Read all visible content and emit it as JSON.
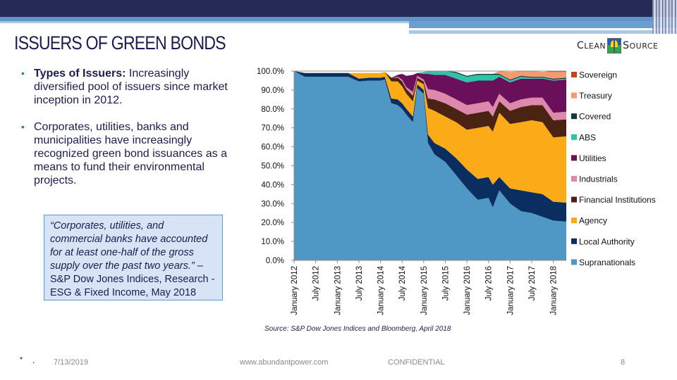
{
  "slide": {
    "title": "ISSUERS OF GREEN BONDS",
    "logo": {
      "left": "Clean",
      "right": "Source"
    },
    "bullets": [
      {
        "bold": "Types of Issuers:",
        "text": " Increasingly diversified pool of issuers since market inception in 2012."
      },
      {
        "bold": "",
        "text": "Corporates, utilities, banks and municipalities have increasingly recognized green bond issuances as a means to fund their environmental projects."
      }
    ],
    "quote": {
      "italic": "“Corporates, utilities, and commercial banks have accounted for at least one-half of the gross supply over the past two years.” –",
      "attribution": "S&P Dow Jones Indices, Research - ESG & Fixed Income, May 2018"
    },
    "source": "Source: S&P Dow Jones Indices and Bloomberg, April 2018",
    "empty_bullet": "•",
    "empty_dot": "."
  },
  "footer": {
    "date": "7/13/2019",
    "url": "www.abundantpower.com",
    "confidential": "CONFIDENTIAL",
    "page": "8"
  },
  "chart_data": {
    "type": "area",
    "stacked": true,
    "title": "",
    "xlabel": "",
    "ylabel": "",
    "ylim": [
      0,
      100
    ],
    "yticks": [
      "0.0%",
      "10.0%",
      "20.0%",
      "30.0%",
      "40.0%",
      "50.0%",
      "60.0%",
      "70.0%",
      "80.0%",
      "90.0%",
      "100.0%"
    ],
    "xticks": [
      "January 2012",
      "July 2012",
      "January 2013",
      "July 2013",
      "January 2014",
      "July 2014",
      "January 2015",
      "July 2015",
      "January 2016",
      "July 2016",
      "January 2017",
      "July 2017",
      "January 2018"
    ],
    "legend_position": "right",
    "x": [
      0,
      0.25,
      0.5,
      0.75,
      1.0,
      1.25,
      1.5,
      1.75,
      2.0,
      2.1,
      2.25,
      2.4,
      2.5,
      2.6,
      2.75,
      2.85,
      3.0,
      3.1,
      3.25,
      3.5,
      3.75,
      4.0,
      4.25,
      4.5,
      4.6,
      4.75,
      5.0,
      5.25,
      5.5,
      5.75,
      6.0,
      6.3
    ],
    "series": [
      {
        "name": "Supranationals",
        "color": "#4f97c4",
        "values": [
          100,
          97,
          97,
          97,
          97,
          97,
          94.5,
          95,
          95,
          95.5,
          83,
          82,
          80,
          77,
          73,
          91,
          88,
          62,
          56,
          52,
          45,
          38,
          32,
          33,
          28,
          37,
          30,
          26,
          25,
          23,
          21,
          20.5
        ]
      },
      {
        "name": "Local Authority",
        "color": "#0b2e61",
        "values": [
          0,
          2,
          2,
          2,
          2,
          2,
          1.5,
          1.5,
          1.5,
          1.5,
          2.5,
          3,
          3,
          3,
          3,
          2,
          2,
          4.5,
          6,
          7,
          9,
          10,
          11,
          11,
          12,
          7,
          8,
          11,
          11,
          12,
          10,
          10
        ]
      },
      {
        "name": "Agency",
        "color": "#fbab18",
        "values": [
          0,
          0,
          0,
          0,
          0,
          0,
          3,
          2.5,
          2.5,
          2.5,
          9,
          9.5,
          9,
          8,
          8,
          2,
          3,
          14,
          17,
          17,
          19,
          21,
          27,
          27,
          28,
          34,
          34,
          36,
          38,
          38,
          34,
          35
        ]
      },
      {
        "name": "Financial Institutions",
        "color": "#4b2312",
        "values": [
          0,
          0,
          0,
          0,
          0,
          0,
          0,
          0,
          0,
          0,
          2,
          2,
          2.5,
          2.5,
          3,
          1.5,
          1.5,
          5,
          6,
          7,
          7,
          8,
          8,
          8,
          8,
          6,
          7,
          8,
          8,
          9,
          9,
          9
        ]
      },
      {
        "name": "Industrials",
        "color": "#de89ab",
        "values": [
          0,
          0,
          0,
          0,
          0,
          0,
          0,
          0,
          0,
          0,
          0,
          0.5,
          1,
          1,
          2,
          1,
          1,
          5,
          5,
          5,
          5,
          5,
          5,
          5,
          5,
          4,
          4,
          4,
          4,
          4,
          4,
          4
        ]
      },
      {
        "name": "Utilities",
        "color": "#6a0f5a",
        "values": [
          0,
          0,
          0,
          0,
          0,
          0,
          0,
          0,
          0,
          0,
          0,
          1,
          3,
          6,
          9,
          1.5,
          3,
          8,
          8,
          10,
          11,
          12,
          12,
          11,
          14,
          9,
          11,
          11,
          10,
          10,
          17,
          17
        ]
      },
      {
        "name": "ABS",
        "color": "#2ec2a6",
        "values": [
          0,
          0,
          0,
          0,
          0,
          0,
          0,
          0,
          0,
          0,
          0,
          0,
          0,
          0,
          0,
          0,
          1,
          1.5,
          2,
          2,
          3,
          3,
          3,
          3,
          3,
          1,
          1,
          1,
          0.5,
          0.5,
          0.5,
          0.5
        ]
      },
      {
        "name": "Covered",
        "color": "#123c37",
        "values": [
          0,
          0,
          0,
          0,
          0,
          0,
          0,
          0,
          0,
          0,
          0,
          0,
          0,
          0,
          0,
          0,
          0,
          0,
          0.5,
          0.5,
          0.5,
          0.5,
          0.5,
          0.5,
          0.5,
          0.5,
          0.5,
          0.5,
          0.5,
          0.5,
          0.5,
          0.5
        ]
      },
      {
        "name": "Treasury",
        "color": "#f59a70",
        "values": [
          0,
          0,
          0,
          0,
          0,
          0,
          0,
          0,
          0,
          0,
          0,
          0,
          0,
          0,
          0,
          0,
          0,
          0,
          0,
          0,
          0,
          0,
          0,
          0,
          0,
          1.5,
          4,
          2.5,
          3,
          2.5,
          3.5,
          3
        ]
      },
      {
        "name": "Sovereign",
        "color": "#c2461c",
        "values": [
          0,
          0,
          0,
          0,
          0,
          0,
          0,
          0,
          0,
          0,
          0,
          0,
          0,
          0,
          0,
          0,
          0,
          0,
          0,
          0,
          0,
          0,
          0,
          0,
          0,
          0,
          0,
          0,
          0,
          0,
          0.5,
          0.5
        ]
      }
    ]
  }
}
